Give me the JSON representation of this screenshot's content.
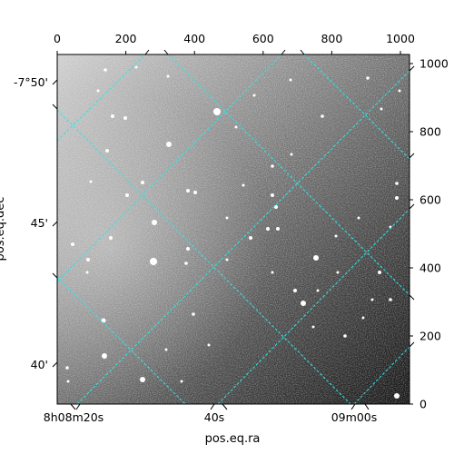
{
  "figure": {
    "type": "astronomical image with WCS grid",
    "colormap": "grayscale",
    "grid_color": "#2ee6e6",
    "grid_style": "dashed",
    "bottom_axis": {
      "label": "pos.eq.ra",
      "ticks": [
        "8h08m20s",
        "40s",
        "09m00s"
      ]
    },
    "left_axis": {
      "label": "pos.eq.dec",
      "ticks": [
        "-7°50'",
        "45'",
        "40'"
      ]
    },
    "top_axis": {
      "ticks": [
        "0",
        "200",
        "400",
        "600",
        "800",
        "1000"
      ]
    },
    "right_axis": {
      "ticks": [
        "0",
        "200",
        "400",
        "600",
        "800",
        "1000"
      ]
    }
  }
}
